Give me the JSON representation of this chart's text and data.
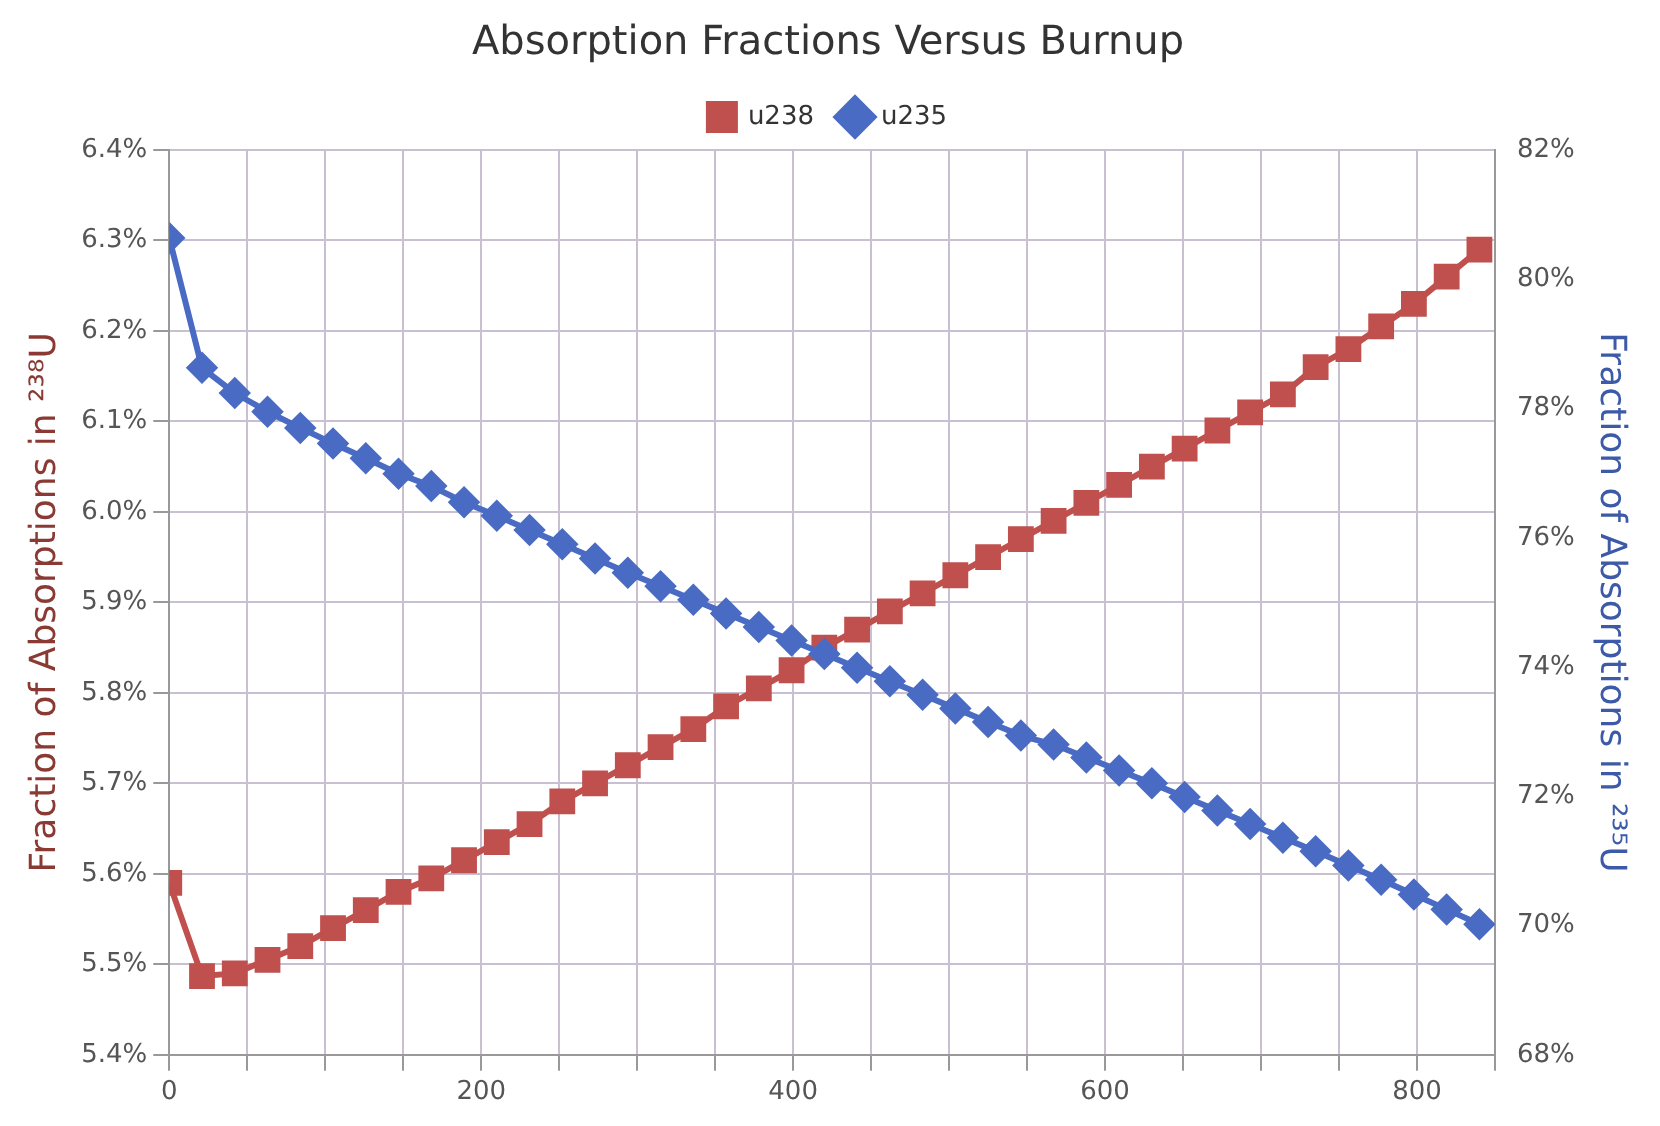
{
  "chart_data": {
    "type": "line",
    "title": "Absorption Fractions Versus Burnup",
    "ylabel": "Fraction of Absorptions in ²³⁸U",
    "y2label": "Fraction of Absorptions in ²³⁵U",
    "x": [
      0,
      21,
      42,
      63,
      84,
      105,
      126,
      147,
      168,
      189,
      210,
      231,
      252,
      273,
      294,
      315,
      336,
      357,
      378,
      399,
      420,
      441,
      462,
      483,
      504,
      525,
      546,
      567,
      588,
      609,
      630,
      651,
      672,
      693,
      714,
      735,
      756,
      777,
      798,
      819,
      840
    ],
    "series": [
      {
        "name": "u238",
        "color": "#c0504d",
        "marker": "square",
        "values": [
          5.59,
          5.487,
          5.49,
          5.505,
          5.52,
          5.54,
          5.56,
          5.58,
          5.595,
          5.615,
          5.635,
          5.655,
          5.68,
          5.7,
          5.72,
          5.74,
          5.76,
          5.785,
          5.805,
          5.825,
          5.85,
          5.87,
          5.89,
          5.91,
          5.93,
          5.95,
          5.97,
          5.99,
          6.01,
          6.03,
          6.05,
          6.07,
          6.09,
          6.11,
          6.13,
          6.16,
          6.18,
          6.205,
          6.23,
          6.26,
          6.29
        ]
      },
      {
        "name": "u235",
        "color": "#4a6bc4",
        "marker": "diamond",
        "axis": "y2",
        "values": [
          80.64,
          78.63,
          78.24,
          77.95,
          77.7,
          77.46,
          77.23,
          76.99,
          76.8,
          76.55,
          76.34,
          76.12,
          75.9,
          75.68,
          75.46,
          75.25,
          75.04,
          74.83,
          74.62,
          74.41,
          74.2,
          73.99,
          73.78,
          73.57,
          73.36,
          73.15,
          72.94,
          72.8,
          72.6,
          72.4,
          72.2,
          71.99,
          71.78,
          71.57,
          71.36,
          71.15,
          70.93,
          70.71,
          70.48,
          70.25,
          70.02
        ]
      }
    ],
    "xlim": [
      0,
      850
    ],
    "xticks": [
      0,
      {
        "value": 50,
        "label": null
      },
      {
        "value": 100,
        "label": null
      },
      {
        "value": 150,
        "label": null
      },
      200,
      {
        "value": 250,
        "label": null
      },
      {
        "value": 300,
        "label": null
      },
      {
        "value": 350,
        "label": null
      },
      400,
      {
        "value": 450,
        "label": null
      },
      {
        "value": 500,
        "label": null
      },
      {
        "value": 550,
        "label": null
      },
      600,
      {
        "value": 650,
        "label": null
      },
      {
        "value": 700,
        "label": null
      },
      {
        "value": 750,
        "label": null
      },
      800,
      {
        "value": 850,
        "label": null
      }
    ],
    "ylim": [
      5.4,
      6.4
    ],
    "yticks": [
      {
        "value": 5.4,
        "label": "5.4%"
      },
      {
        "value": 5.5,
        "label": "5.5%"
      },
      {
        "value": 5.6,
        "label": "5.6%"
      },
      {
        "value": 5.7,
        "label": "5.7%"
      },
      {
        "value": 5.8,
        "label": "5.8%"
      },
      {
        "value": 5.9,
        "label": "5.9%"
      },
      {
        "value": 6.0,
        "label": "6.0%"
      },
      {
        "value": 6.1,
        "label": "6.1%"
      },
      {
        "value": 6.2,
        "label": "6.2%"
      },
      {
        "value": 6.3,
        "label": "6.3%"
      },
      {
        "value": 6.4,
        "label": "6.4%"
      }
    ],
    "y2lim": [
      68,
      82
    ],
    "y2ticks": [
      {
        "value": 68,
        "label": "68%"
      },
      {
        "value": 70,
        "label": "70%"
      },
      {
        "value": 72,
        "label": "72%"
      },
      {
        "value": 74,
        "label": "74%"
      },
      {
        "value": 76,
        "label": "76%"
      },
      {
        "value": 78,
        "label": "78%"
      },
      {
        "value": 80,
        "label": "80%"
      },
      {
        "value": 82,
        "label": "82%"
      }
    ],
    "grid": true,
    "legend": "top",
    "line_style": "solid"
  }
}
